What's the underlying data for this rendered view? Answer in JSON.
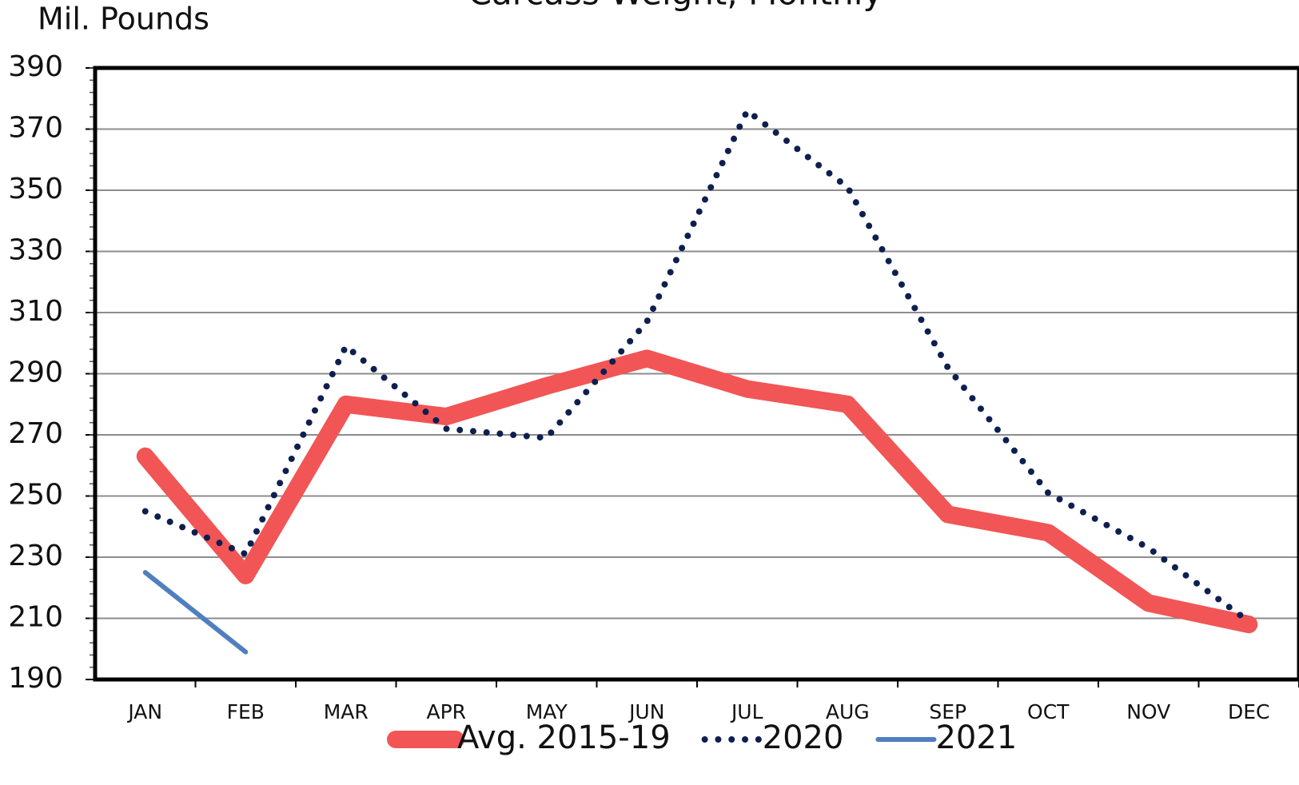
{
  "chart_data": {
    "type": "line",
    "title": "Carcass Weight, Monthly",
    "y_label": "Mil. Pounds",
    "categories": [
      "JAN",
      "FEB",
      "MAR",
      "APR",
      "MAY",
      "JUN",
      "JUL",
      "AUG",
      "SEP",
      "OCT",
      "NOV",
      "DEC"
    ],
    "series": [
      {
        "name": "Avg. 2015-19",
        "color": "#f25555",
        "style": "solid",
        "width": 22,
        "values": [
          263,
          224,
          280,
          276,
          286,
          295,
          285,
          280,
          244,
          238,
          215,
          208
        ]
      },
      {
        "name": "2020",
        "color": "#0d1f4f",
        "style": "dotted",
        "width": 8,
        "values": [
          245,
          231,
          299,
          272,
          269,
          307,
          376,
          351,
          292,
          251,
          233,
          209
        ]
      },
      {
        "name": "2021",
        "color": "#4f7fc0",
        "style": "solid",
        "width": 6,
        "values": [
          225,
          199,
          null,
          null,
          null,
          null,
          null,
          null,
          null,
          null,
          null,
          null
        ]
      }
    ],
    "ylim": [
      190,
      390
    ],
    "yticks": [
      190,
      210,
      230,
      250,
      270,
      290,
      310,
      330,
      350,
      370,
      390
    ],
    "grid": true,
    "legend": "bottom"
  }
}
